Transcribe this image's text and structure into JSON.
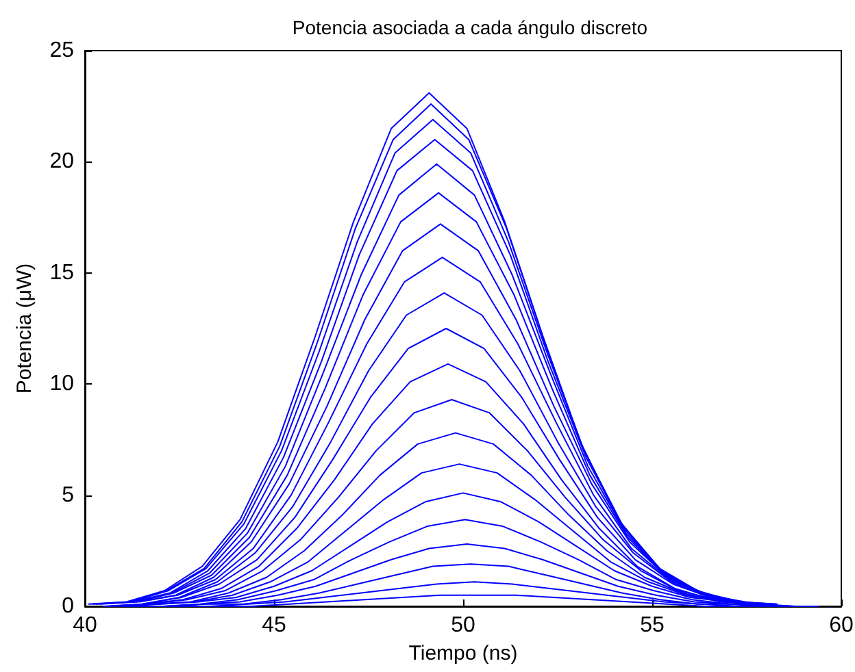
{
  "chart_data": {
    "type": "line",
    "title": "Potencia asociada a cada ángulo discreto",
    "xlabel": "Tiempo (ns)",
    "ylabel": "Potencia (μW)",
    "xlim": [
      40,
      60
    ],
    "xticks": [
      40,
      45,
      50,
      55,
      60
    ],
    "ylim": [
      0,
      25
    ],
    "yticks": [
      0,
      5,
      10,
      15,
      20,
      25
    ],
    "grid": false,
    "marker": "none",
    "line_style": "solid",
    "series": [
      {
        "color": "#0000ff",
        "x": [
          40.1,
          41.1,
          42.1,
          43.1,
          44.1,
          45.1,
          46.1,
          47.1,
          48.1,
          49.1,
          50.1,
          51.1,
          52.1,
          53.1,
          54.1,
          55.1,
          56.1,
          57.1,
          58.1
        ],
        "values": [
          0.1,
          0.2,
          0.7,
          1.8,
          3.9,
          7.4,
          12.2,
          17.3,
          21.5,
          23.1,
          21.5,
          17.3,
          12.2,
          7.4,
          3.9,
          1.8,
          0.7,
          0.2,
          0.1
        ]
      },
      {
        "color": "#0000ff",
        "x": [
          41.15,
          42.15,
          43.15,
          44.15,
          45.15,
          46.15,
          47.15,
          48.15,
          49.15,
          50.15,
          51.15,
          52.15,
          53.15,
          54.15,
          55.15,
          56.15,
          57.15
        ],
        "values": [
          0.2,
          0.7,
          1.7,
          3.8,
          7.2,
          11.9,
          17.0,
          21.0,
          22.6,
          21.0,
          17.0,
          11.9,
          7.2,
          3.8,
          1.7,
          0.7,
          0.2
        ]
      },
      {
        "color": "#0000ff",
        "x": [
          40.2,
          41.2,
          42.2,
          43.2,
          44.2,
          45.2,
          46.2,
          47.2,
          48.2,
          49.2,
          50.2,
          51.2,
          52.2,
          53.2,
          54.2,
          55.2,
          56.2,
          57.2
        ],
        "values": [
          0.1,
          0.2,
          0.7,
          1.7,
          3.7,
          7.0,
          11.5,
          16.4,
          20.4,
          21.9,
          20.4,
          16.4,
          11.5,
          7.0,
          3.7,
          1.7,
          0.7,
          0.2
        ]
      },
      {
        "color": "#0000ff",
        "x": [
          41.25,
          42.25,
          43.25,
          44.25,
          45.25,
          46.25,
          47.25,
          48.25,
          49.25,
          50.25,
          51.25,
          52.25,
          53.25,
          54.25,
          55.25,
          56.25,
          57.25,
          58.25
        ],
        "values": [
          0.2,
          0.6,
          1.6,
          3.5,
          6.7,
          11.0,
          15.8,
          19.6,
          21.0,
          19.6,
          15.8,
          11.0,
          6.7,
          3.5,
          1.6,
          0.6,
          0.2,
          0.1
        ]
      },
      {
        "color": "#0000ff",
        "x": [
          40.3,
          41.3,
          42.3,
          43.3,
          44.3,
          45.3,
          46.3,
          47.3,
          48.3,
          49.3,
          50.3,
          51.3,
          52.3,
          53.3,
          54.3,
          55.3,
          56.3,
          57.3,
          58.3
        ],
        "values": [
          0.1,
          0.2,
          0.6,
          1.5,
          3.3,
          6.3,
          10.5,
          14.9,
          18.5,
          19.9,
          18.5,
          14.9,
          10.5,
          6.3,
          3.3,
          1.5,
          0.6,
          0.2,
          0.1
        ]
      },
      {
        "color": "#0000ff",
        "x": [
          41.35,
          42.35,
          43.35,
          44.35,
          45.35,
          46.35,
          47.35,
          48.35,
          49.35,
          50.35,
          51.35,
          52.35,
          53.35,
          54.35,
          55.35,
          56.35,
          57.35
        ],
        "values": [
          0.2,
          0.6,
          1.4,
          3.1,
          5.9,
          9.8,
          14.0,
          17.3,
          18.6,
          17.3,
          14.0,
          9.8,
          5.9,
          3.1,
          1.4,
          0.6,
          0.2
        ]
      },
      {
        "color": "#0000ff",
        "x": [
          40.4,
          41.4,
          42.4,
          43.4,
          44.4,
          45.4,
          46.4,
          47.4,
          48.4,
          49.4,
          50.4,
          51.4,
          52.4,
          53.4,
          54.4,
          55.4,
          56.4,
          57.4
        ],
        "values": [
          0.1,
          0.2,
          0.5,
          1.3,
          2.9,
          5.5,
          9.0,
          12.9,
          16.0,
          17.2,
          16.0,
          12.9,
          9.0,
          5.5,
          2.9,
          1.3,
          0.5,
          0.2
        ]
      },
      {
        "color": "#0000ff",
        "x": [
          41.45,
          42.45,
          43.45,
          44.45,
          45.45,
          46.45,
          47.45,
          48.45,
          49.45,
          50.45,
          51.45,
          52.45,
          53.45,
          54.45,
          55.45,
          56.45,
          57.45,
          58.45
        ],
        "values": [
          0.2,
          0.5,
          1.2,
          2.6,
          5.0,
          8.3,
          11.8,
          14.6,
          15.7,
          14.6,
          11.8,
          8.3,
          5.0,
          2.6,
          1.2,
          0.5,
          0.2,
          0.0
        ]
      },
      {
        "color": "#0000ff",
        "x": [
          40.5,
          41.5,
          42.5,
          43.5,
          44.5,
          45.5,
          46.5,
          47.5,
          48.5,
          49.5,
          50.5,
          51.5,
          52.5,
          53.5,
          54.5,
          55.5,
          56.5,
          57.5,
          58.5
        ],
        "values": [
          0.0,
          0.1,
          0.4,
          1.1,
          2.4,
          4.5,
          7.4,
          10.6,
          13.1,
          14.1,
          13.1,
          10.6,
          7.4,
          4.5,
          2.4,
          1.1,
          0.4,
          0.1,
          0.0
        ]
      },
      {
        "color": "#0000ff",
        "x": [
          41.55,
          42.55,
          43.55,
          44.55,
          45.55,
          46.55,
          47.55,
          48.55,
          49.55,
          50.55,
          51.55,
          52.55,
          53.55,
          54.55,
          55.55,
          56.55,
          57.55
        ],
        "values": [
          0.1,
          0.4,
          1.0,
          2.1,
          4.0,
          6.6,
          9.4,
          11.6,
          12.5,
          11.6,
          9.4,
          6.6,
          4.0,
          2.1,
          1.0,
          0.4,
          0.1
        ]
      },
      {
        "color": "#0000ff",
        "x": [
          40.6,
          41.6,
          42.6,
          43.6,
          44.6,
          45.6,
          46.6,
          47.6,
          48.6,
          49.6,
          50.6,
          51.6,
          52.6,
          53.6,
          54.6,
          55.6,
          56.6,
          57.6
        ],
        "values": [
          0.0,
          0.1,
          0.3,
          0.8,
          1.8,
          3.5,
          5.7,
          8.2,
          10.1,
          10.9,
          10.1,
          8.2,
          5.7,
          3.5,
          1.8,
          0.8,
          0.3,
          0.1
        ]
      },
      {
        "color": "#0000ff",
        "x": [
          41.7,
          42.7,
          43.7,
          44.7,
          45.7,
          46.7,
          47.7,
          48.7,
          49.7,
          50.7,
          51.7,
          52.7,
          53.7,
          54.7,
          55.7,
          56.7,
          57.7,
          58.7
        ],
        "values": [
          0.1,
          0.3,
          0.7,
          1.6,
          3.0,
          4.9,
          7.0,
          8.7,
          9.3,
          8.7,
          7.0,
          4.9,
          3.0,
          1.6,
          0.7,
          0.3,
          0.1,
          0.0
        ]
      },
      {
        "color": "#0000ff",
        "x": [
          40.8,
          41.8,
          42.8,
          43.8,
          44.8,
          45.8,
          46.8,
          47.8,
          48.8,
          49.8,
          50.8,
          51.8,
          52.8,
          53.8,
          54.8,
          55.8,
          56.8,
          57.8,
          58.8
        ],
        "values": [
          0.0,
          0.1,
          0.2,
          0.6,
          1.3,
          2.5,
          4.1,
          5.9,
          7.3,
          7.8,
          7.3,
          5.9,
          4.1,
          2.5,
          1.3,
          0.6,
          0.2,
          0.1,
          0.0
        ]
      },
      {
        "color": "#0000ff",
        "x": [
          41.9,
          42.9,
          43.9,
          44.9,
          45.9,
          46.9,
          47.9,
          48.9,
          49.9,
          50.9,
          51.9,
          52.9,
          53.9,
          54.9,
          55.9,
          56.9,
          57.9
        ],
        "values": [
          0.1,
          0.2,
          0.5,
          1.1,
          2.0,
          3.4,
          4.8,
          6.0,
          6.4,
          6.0,
          4.8,
          3.4,
          2.0,
          1.1,
          0.5,
          0.2,
          0.1
        ]
      },
      {
        "color": "#0000ff",
        "x": [
          41.0,
          42.0,
          43.0,
          44.0,
          45.0,
          46.0,
          47.0,
          48.0,
          49.0,
          50.0,
          51.0,
          52.0,
          53.0,
          54.0,
          55.0,
          56.0,
          57.0,
          58.0
        ],
        "values": [
          0.0,
          0.1,
          0.2,
          0.4,
          0.9,
          1.6,
          2.7,
          3.8,
          4.7,
          5.1,
          4.7,
          3.8,
          2.7,
          1.6,
          0.9,
          0.4,
          0.2,
          0.1
        ]
      },
      {
        "color": "#0000ff",
        "x": [
          42.05,
          43.05,
          44.05,
          45.05,
          46.05,
          47.05,
          48.05,
          49.05,
          50.05,
          51.05,
          52.05,
          53.05,
          54.05,
          55.05,
          56.05,
          57.05,
          58.05,
          59.05
        ],
        "values": [
          0.0,
          0.1,
          0.3,
          0.7,
          1.2,
          2.1,
          2.9,
          3.6,
          3.9,
          3.6,
          2.9,
          2.1,
          1.2,
          0.7,
          0.3,
          0.1,
          0.0,
          0.0
        ]
      },
      {
        "color": "#0000ff",
        "x": [
          41.1,
          42.1,
          43.1,
          44.1,
          45.1,
          46.1,
          47.1,
          48.1,
          49.1,
          50.1,
          51.1,
          52.1,
          53.1,
          54.1,
          55.1,
          56.1,
          57.1,
          58.1,
          59.1
        ],
        "values": [
          0.0,
          0.0,
          0.1,
          0.2,
          0.5,
          0.9,
          1.5,
          2.1,
          2.6,
          2.8,
          2.6,
          2.1,
          1.5,
          0.9,
          0.5,
          0.2,
          0.1,
          0.0,
          0.0
        ]
      },
      {
        "color": "#0000ff",
        "x": [
          42.2,
          43.2,
          44.2,
          45.2,
          46.2,
          47.2,
          48.2,
          49.2,
          50.2,
          51.2,
          52.2,
          53.2,
          54.2,
          55.2,
          56.2,
          57.2,
          58.2
        ],
        "values": [
          0.0,
          0.1,
          0.1,
          0.3,
          0.6,
          1.0,
          1.4,
          1.8,
          1.9,
          1.8,
          1.4,
          1.0,
          0.6,
          0.3,
          0.1,
          0.1,
          0.0
        ]
      },
      {
        "color": "#0000ff",
        "x": [
          41.3,
          42.3,
          43.3,
          44.3,
          45.3,
          46.3,
          47.3,
          48.3,
          49.3,
          50.3,
          51.3,
          52.3,
          53.3,
          54.3,
          55.3,
          56.3,
          57.3,
          58.3
        ],
        "values": [
          0.0,
          0.0,
          0.0,
          0.1,
          0.2,
          0.4,
          0.6,
          0.8,
          1.0,
          1.1,
          1.0,
          0.8,
          0.6,
          0.4,
          0.2,
          0.1,
          0.0,
          0.0
        ]
      },
      {
        "color": "#0000ff",
        "x": [
          42.4,
          43.4,
          44.4,
          45.4,
          46.4,
          47.4,
          48.4,
          49.4,
          50.4,
          51.4,
          52.4,
          53.4,
          54.4,
          55.4,
          56.4,
          57.4,
          58.4,
          59.4
        ],
        "values": [
          0.0,
          0.0,
          0.0,
          0.1,
          0.2,
          0.3,
          0.4,
          0.5,
          0.5,
          0.5,
          0.4,
          0.3,
          0.2,
          0.1,
          0.0,
          0.0,
          0.0,
          0.0
        ]
      }
    ]
  }
}
